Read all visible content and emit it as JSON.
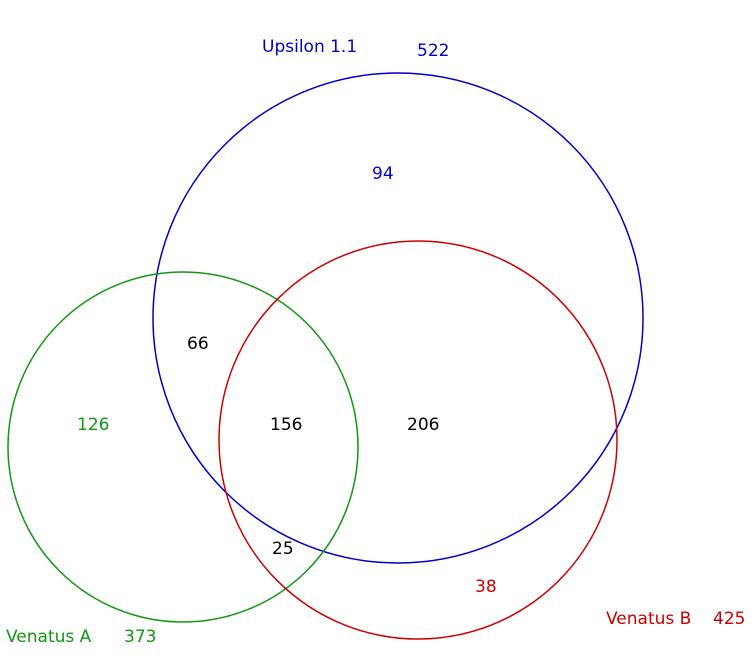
{
  "sets": {
    "upsilon": {
      "name": "Upsilon 1.1",
      "total": "522",
      "color": "#0000cc"
    },
    "venatus_a": {
      "name": "Venatus A",
      "total": "373",
      "color": "#119911"
    },
    "venatus_b": {
      "name": "Venatus B",
      "total": "425",
      "color": "#cc0000"
    }
  },
  "regions": {
    "upsilon_only": "94",
    "venatus_a_only": "126",
    "venatus_b_only": "38",
    "upsilon_and_venatus_a": "66",
    "upsilon_and_venatus_b": "206",
    "venatus_a_and_venatus_b": "25",
    "all_three": "156"
  }
}
